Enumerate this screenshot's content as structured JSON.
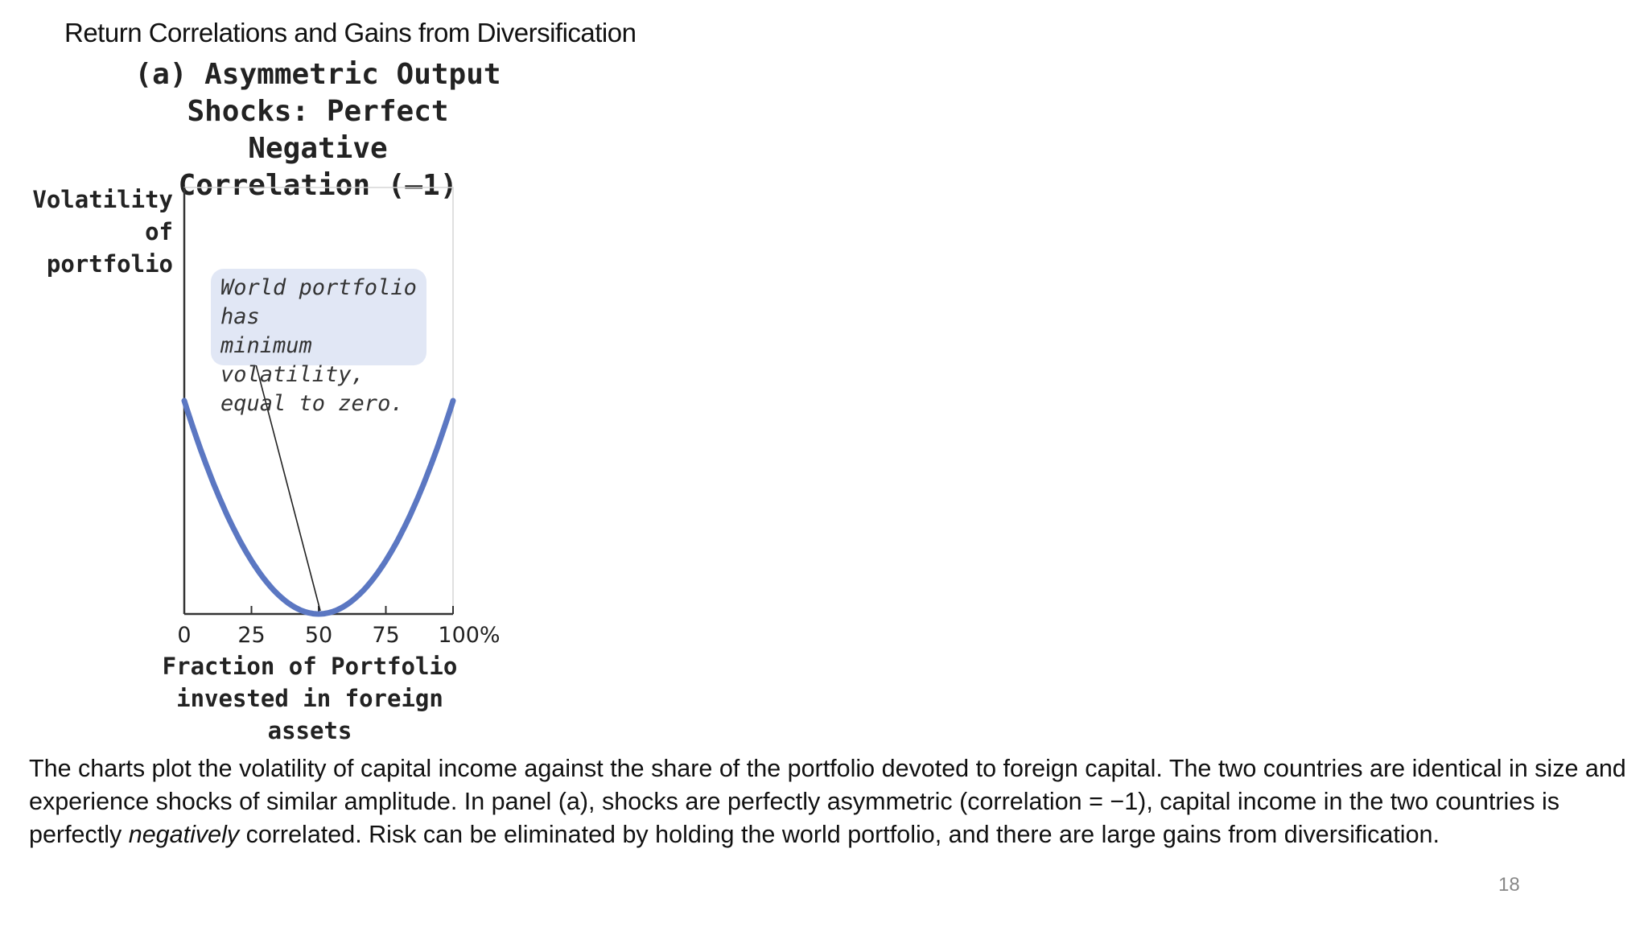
{
  "slide": {
    "title": "Return Correlations and Gains from Diversification",
    "page_number": "18"
  },
  "chart_data": {
    "type": "line",
    "title": "(a) Asymmetric Output Shocks: Perfect Negative Correlation (–1)",
    "title_lines": [
      "(a) Asymmetric Output",
      "Shocks: Perfect Negative",
      "Correlation (–1)"
    ],
    "ylabel_lines": [
      "Volatility",
      "of portfolio"
    ],
    "xlabel_lines": [
      "Fraction of Portfolio",
      "invested in foreign assets"
    ],
    "x_ticks": [
      0,
      25,
      50,
      75,
      100
    ],
    "x_tick_labels": [
      "0",
      "25",
      "50",
      "75",
      "100%"
    ],
    "xlim": [
      0,
      100
    ],
    "series": [
      {
        "x": [
          0,
          10,
          20,
          30,
          40,
          50,
          60,
          70,
          80,
          90,
          100
        ],
        "y": [
          1.0,
          0.64,
          0.36,
          0.16,
          0.04,
          0.0,
          0.04,
          0.16,
          0.36,
          0.64,
          1.0
        ]
      }
    ],
    "annotation": {
      "text": "World portfolio has\nminimum volatility,\nequal to zero.",
      "points_to": {
        "x": 50,
        "y": 0
      }
    },
    "colors": {
      "curve": "#5b77c2",
      "callout_bg": "#e1e7f5",
      "axis": "#333333"
    },
    "grid": false
  },
  "caption": {
    "part1": "The charts plot the volatility of capital income against the share of the portfolio devoted to foreign capital. The two countries are identical in size and experience shocks of similar amplitude. In panel (a), shocks are perfectly asymmetric (correlation = −1), capital income in the two countries is perfectly ",
    "emphasis": "negatively",
    "part2": " correlated. Risk can be eliminated by holding the world portfolio, and there are large gains from diversification."
  }
}
